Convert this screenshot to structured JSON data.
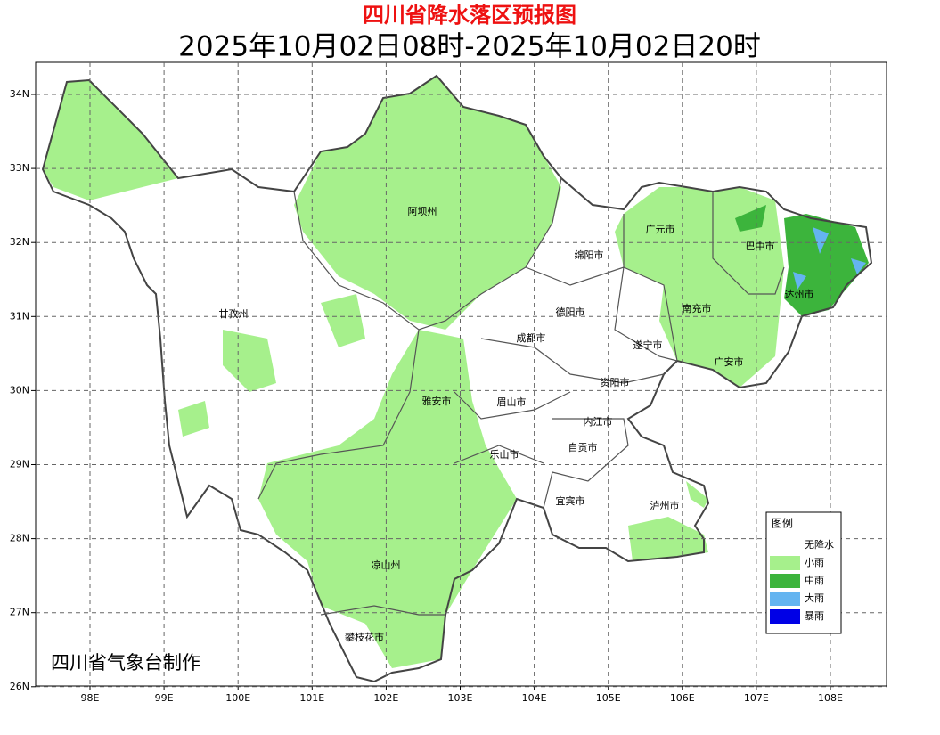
{
  "title": "四川省降水落区预报图",
  "subtitle": "2025年10月02日08时-2025年10月02日20时",
  "lon_labels": [
    "98E",
    "99E",
    "100E",
    "101E",
    "102E",
    "103E",
    "104E",
    "105E",
    "106E",
    "107E",
    "108E"
  ],
  "lat_labels": [
    "34N",
    "33N",
    "32N",
    "31N",
    "30N",
    "29N",
    "28N",
    "27N",
    "26N"
  ],
  "cities": [
    "阿坝州",
    "甘孜州",
    "广元市",
    "巴中市",
    "绵阳市",
    "达州市",
    "德阳市",
    "南充市",
    "成都市",
    "遂宁市",
    "广安市",
    "资阳市",
    "雅安市",
    "眉山市",
    "内江市",
    "自贡市",
    "乐山市",
    "宜宾市",
    "泸州市",
    "凉山州",
    "攀枝花市"
  ],
  "legend": {
    "title": "图例",
    "items": [
      "无降水",
      "小雨",
      "中雨",
      "大雨",
      "暴雨"
    ]
  },
  "credit": "四川省气象台制作"
}
